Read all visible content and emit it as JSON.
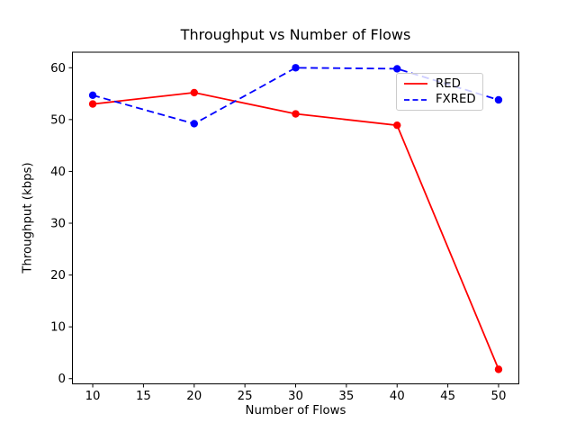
{
  "chart_data": {
    "type": "line",
    "title": "Throughput vs Number of Flows",
    "xlabel": "Number of Flows",
    "ylabel": "Throughput (kbps)",
    "x": [
      10,
      20,
      30,
      40,
      50
    ],
    "series": [
      {
        "name": "RED",
        "color": "#ff0000",
        "style": "solid",
        "marker": "circle",
        "values": [
          53.0,
          55.2,
          51.1,
          48.9,
          1.8
        ]
      },
      {
        "name": "FXRED",
        "color": "#0000ff",
        "style": "dashed",
        "marker": "circle",
        "values": [
          54.7,
          49.2,
          60.0,
          59.8,
          53.8
        ]
      }
    ],
    "xticks": [
      10,
      15,
      20,
      25,
      30,
      35,
      40,
      45,
      50
    ],
    "yticks": [
      0,
      10,
      20,
      30,
      40,
      50,
      60
    ],
    "xlim": [
      8,
      52
    ],
    "ylim": [
      -1,
      63
    ],
    "grid": false,
    "legend": {
      "position": "upper right",
      "entries": [
        "RED",
        "FXRED"
      ]
    }
  }
}
